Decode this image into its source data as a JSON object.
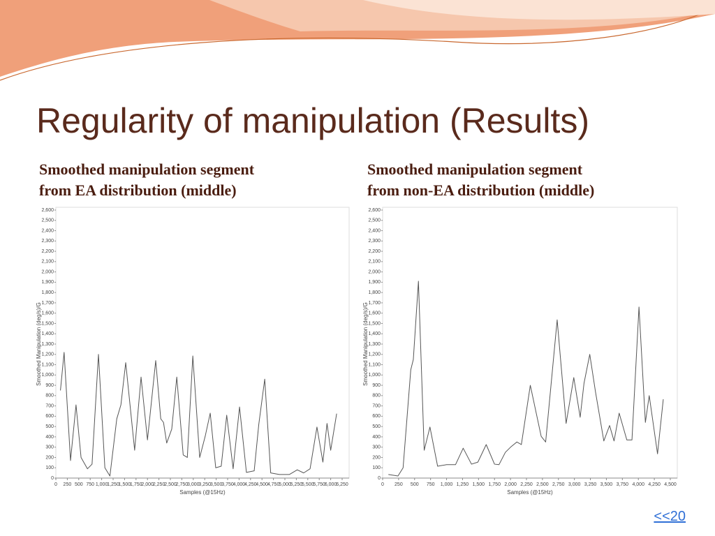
{
  "slide": {
    "title": "Regularity of manipulation (Results)",
    "link": "<<20"
  },
  "chart_data": [
    {
      "type": "line",
      "title": [
        "Smoothed manipulation segment",
        "from EA distribution (middle)"
      ],
      "xlabel": "Samples (@15Hz)",
      "ylabel": "Smoothed Manipulation (deg/s)/G",
      "color": "#555555",
      "xlim": [
        0,
        6250
      ],
      "ylim": [
        0,
        2600
      ],
      "xticks": [
        0,
        250,
        500,
        750,
        {
          "value": 1000,
          "label": "1,000"
        },
        {
          "value": 1250,
          "label": "1,250"
        },
        {
          "value": 1500,
          "label": "1,500"
        },
        {
          "value": 1750,
          "label": "1,750"
        },
        {
          "value": 2000,
          "label": "2,000"
        },
        {
          "value": 2250,
          "label": "2,250"
        },
        {
          "value": 2500,
          "label": "2,500"
        },
        {
          "value": 2750,
          "label": "2,750"
        },
        {
          "value": 3000,
          "label": "3,000"
        },
        {
          "value": 3250,
          "label": "3,250"
        },
        {
          "value": 3500,
          "label": "3,500"
        },
        {
          "value": 3750,
          "label": "3,750"
        },
        {
          "value": 4000,
          "label": "4,000"
        },
        {
          "value": 4250,
          "label": "4,250"
        },
        {
          "value": 4500,
          "label": "4,500"
        },
        {
          "value": 4750,
          "label": "4,750"
        },
        {
          "value": 5000,
          "label": "5,000"
        },
        {
          "value": 5250,
          "label": "5,250"
        },
        {
          "value": 5500,
          "label": "5,500"
        },
        {
          "value": 5750,
          "label": "5,750"
        },
        {
          "value": 6000,
          "label": "6,000"
        },
        {
          "value": 6250,
          "label": "6,250"
        }
      ],
      "yticks": [
        0,
        100,
        200,
        300,
        400,
        500,
        600,
        700,
        800,
        900,
        {
          "value": 1000,
          "label": "1,000"
        },
        {
          "value": 1100,
          "label": "1,100"
        },
        {
          "value": 1200,
          "label": "1,200"
        },
        {
          "value": 1300,
          "label": "1,300"
        },
        {
          "value": 1400,
          "label": "1,400"
        },
        {
          "value": 1500,
          "label": "1,500"
        },
        {
          "value": 1600,
          "label": "1,600"
        },
        {
          "value": 1700,
          "label": "1,700"
        },
        {
          "value": 1800,
          "label": "1,800"
        },
        {
          "value": 1900,
          "label": "1,900"
        },
        {
          "value": 2000,
          "label": "2,000"
        },
        {
          "value": 2100,
          "label": "2,100"
        },
        {
          "value": 2200,
          "label": "2,200"
        },
        {
          "value": 2300,
          "label": "2,300"
        },
        {
          "value": 2400,
          "label": "2,400"
        },
        {
          "value": 2500,
          "label": "2,500"
        },
        {
          "value": 2600,
          "label": "2,600"
        }
      ],
      "x": [
        100,
        180,
        320,
        440,
        550,
        690,
        790,
        930,
        1070,
        1180,
        1330,
        1420,
        1525,
        1720,
        1860,
        2000,
        2180,
        2290,
        2350,
        2420,
        2530,
        2640,
        2780,
        2870,
        2990,
        3140,
        3260,
        3370,
        3490,
        3610,
        3730,
        3870,
        4010,
        4160,
        4330,
        4430,
        4560,
        4690,
        4880,
        5100,
        5270,
        5410,
        5550,
        5700,
        5830,
        5920,
        6000,
        6130
      ],
      "values": [
        850,
        1220,
        170,
        710,
        200,
        90,
        135,
        1200,
        100,
        20,
        575,
        710,
        1120,
        270,
        980,
        370,
        1140,
        575,
        540,
        340,
        475,
        980,
        225,
        200,
        1185,
        200,
        405,
        630,
        100,
        115,
        610,
        90,
        690,
        55,
        70,
        520,
        960,
        50,
        35,
        35,
        80,
        50,
        90,
        495,
        155,
        530,
        270,
        625
      ]
    },
    {
      "type": "line",
      "title": [
        "Smoothed manipulation segment",
        "from non-EA distribution (middle)"
      ],
      "xlabel": "Samples (@15Hz)",
      "ylabel": "Smoothed Manipulation (deg/s)/G",
      "color": "#555555",
      "xlim": [
        0,
        4500
      ],
      "ylim": [
        0,
        2600
      ],
      "xticks": [
        0,
        250,
        500,
        750,
        {
          "value": 1000,
          "label": "1,000"
        },
        {
          "value": 1250,
          "label": "1,250"
        },
        {
          "value": 1500,
          "label": "1,500"
        },
        {
          "value": 1750,
          "label": "1,750"
        },
        {
          "value": 2000,
          "label": "2,000"
        },
        {
          "value": 2250,
          "label": "2,250"
        },
        {
          "value": 2500,
          "label": "2,500"
        },
        {
          "value": 2750,
          "label": "2,750"
        },
        {
          "value": 3000,
          "label": "3,000"
        },
        {
          "value": 3250,
          "label": "3,250"
        },
        {
          "value": 3500,
          "label": "3,500"
        },
        {
          "value": 3750,
          "label": "3,750"
        },
        {
          "value": 4000,
          "label": "4,000"
        },
        {
          "value": 4250,
          "label": "4,250"
        },
        {
          "value": 4500,
          "label": "4,500"
        }
      ],
      "yticks": [
        0,
        100,
        200,
        300,
        400,
        500,
        600,
        700,
        800,
        900,
        {
          "value": 1000,
          "label": "1,000"
        },
        {
          "value": 1100,
          "label": "1,100"
        },
        {
          "value": 1200,
          "label": "1,200"
        },
        {
          "value": 1300,
          "label": "1,300"
        },
        {
          "value": 1400,
          "label": "1,400"
        },
        {
          "value": 1500,
          "label": "1,500"
        },
        {
          "value": 1600,
          "label": "1,600"
        },
        {
          "value": 1700,
          "label": "1,700"
        },
        {
          "value": 1800,
          "label": "1,800"
        },
        {
          "value": 1900,
          "label": "1,900"
        },
        {
          "value": 2000,
          "label": "2,000"
        },
        {
          "value": 2100,
          "label": "2,100"
        },
        {
          "value": 2200,
          "label": "2,200"
        },
        {
          "value": 2300,
          "label": "2,300"
        },
        {
          "value": 2400,
          "label": "2,400"
        },
        {
          "value": 2500,
          "label": "2,500"
        },
        {
          "value": 2600,
          "label": "2,600"
        }
      ],
      "x": [
        90,
        240,
        320,
        440,
        480,
        560,
        650,
        740,
        860,
        1000,
        1140,
        1260,
        1390,
        1490,
        1620,
        1750,
        1820,
        1920,
        2010,
        2100,
        2170,
        2310,
        2480,
        2550,
        2730,
        2870,
        2990,
        3090,
        3150,
        3240,
        3330,
        3460,
        3550,
        3620,
        3700,
        3820,
        3900,
        4010,
        4110,
        4170,
        4300,
        4390
      ],
      "values": [
        35,
        20,
        100,
        1050,
        1150,
        1910,
        270,
        495,
        115,
        130,
        130,
        290,
        135,
        155,
        325,
        135,
        130,
        250,
        305,
        350,
        325,
        900,
        405,
        350,
        1535,
        530,
        975,
        590,
        920,
        1200,
        835,
        360,
        510,
        360,
        630,
        370,
        370,
        1660,
        540,
        800,
        235,
        765
      ]
    }
  ]
}
